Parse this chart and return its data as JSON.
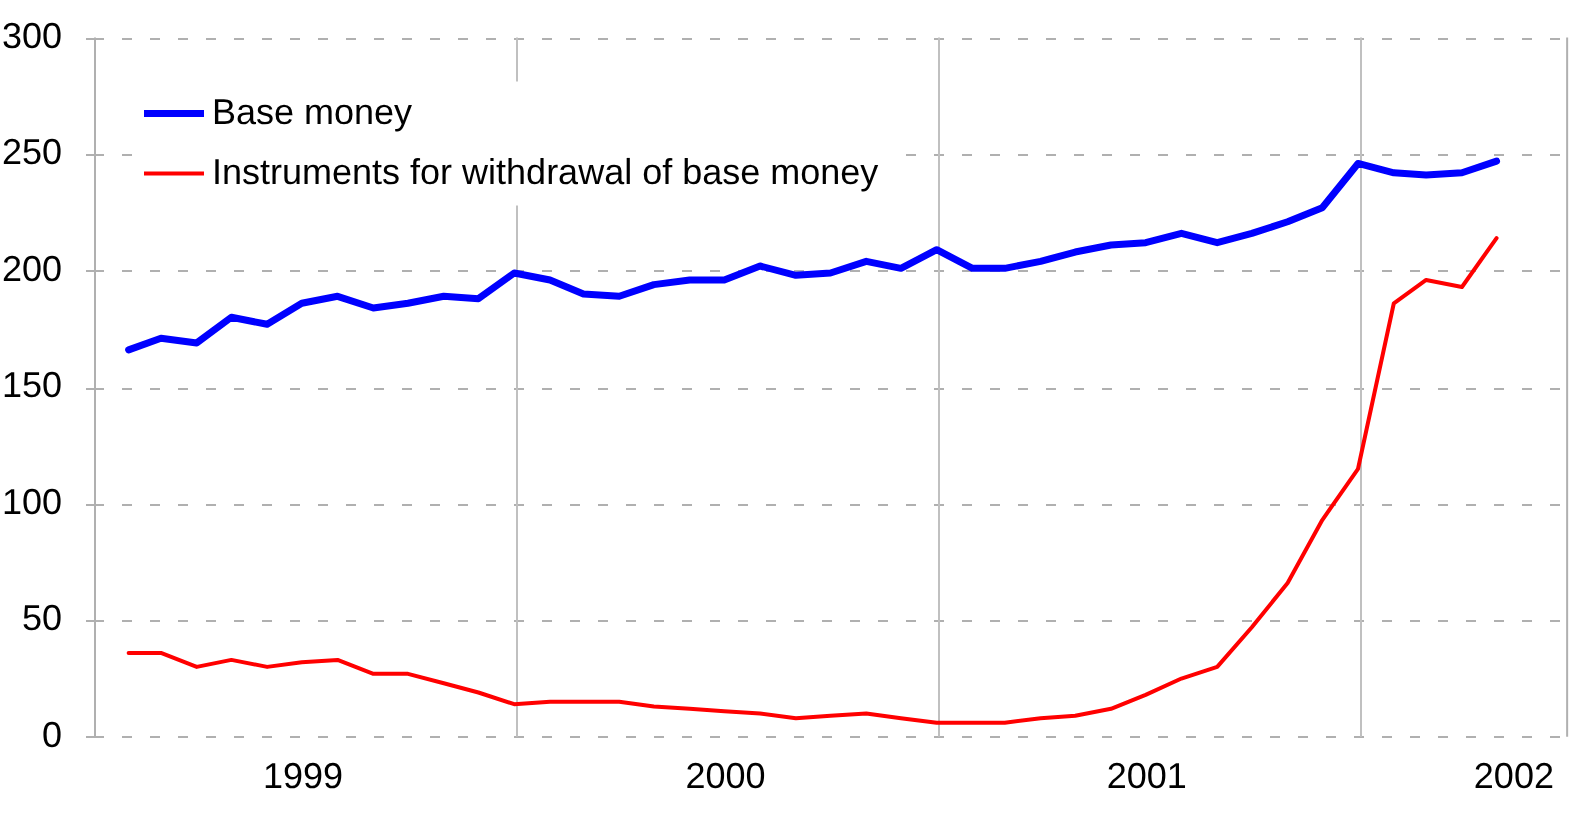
{
  "chart_data": {
    "type": "line",
    "x": [
      "1999-01-31",
      "1999-02-28",
      "1999-03-31",
      "1999-04-30",
      "1999-05-31",
      "1999-06-30",
      "1999-07-31",
      "1999-08-31",
      "1999-09-30",
      "1999-10-31",
      "1999-11-30",
      "1999-12-31",
      "2000-01-31",
      "2000-02-29",
      "2000-03-31",
      "2000-04-30",
      "2000-05-31",
      "2000-06-30",
      "2000-07-31",
      "2000-08-31",
      "2000-09-30",
      "2000-10-31",
      "2000-11-30",
      "2000-12-31",
      "2001-01-31",
      "2001-02-28",
      "2001-03-31",
      "2001-04-30",
      "2001-05-31",
      "2001-06-30",
      "2001-07-31",
      "2001-08-31",
      "2001-09-30",
      "2001-10-31",
      "2001-11-30",
      "2001-12-31",
      "2002-01-31",
      "2002-02-28",
      "2002-03-31",
      "2002-04-30"
    ],
    "series": [
      {
        "name": "Base money",
        "color": "#0000ff",
        "values": [
          166,
          171,
          169,
          180,
          177,
          186,
          189,
          184,
          186,
          189,
          188,
          199,
          196,
          190,
          189,
          194,
          196,
          196,
          202,
          198,
          199,
          204,
          201,
          209,
          201,
          201,
          204,
          208,
          211,
          212,
          216,
          212,
          216,
          221,
          227,
          246,
          242,
          241,
          242,
          247
        ]
      },
      {
        "name": "Instruments for withdrawal of base money",
        "color": "#ff0000",
        "values": [
          36,
          36,
          30,
          33,
          30,
          32,
          33,
          27,
          27,
          23,
          19,
          14,
          15,
          15,
          15,
          13,
          12,
          11,
          10,
          8,
          9,
          10,
          8,
          6,
          6,
          6,
          8,
          9,
          12,
          18,
          25,
          30,
          47,
          66,
          93,
          115,
          186,
          196,
          193,
          214
        ]
      }
    ],
    "xlim": [
      "1999-01-01",
      "2002-07-01"
    ],
    "xticks": [
      {
        "value": "1999-07-01",
        "label": "1999"
      },
      {
        "value": "2000-07-01",
        "label": "2000"
      },
      {
        "value": "2001-07-01",
        "label": "2001"
      },
      {
        "value": "2002-05-15",
        "label": "2002"
      }
    ],
    "ylim": [
      0,
      300
    ],
    "yticks": [
      0,
      50,
      100,
      150,
      200,
      250,
      300
    ],
    "ref_lines": [
      {
        "axis": "x",
        "value": "2000-01-01",
        "label": null,
        "color": "#c0c0c0"
      },
      {
        "axis": "x",
        "value": "2001-01-01",
        "label": null,
        "color": "#c0c0c0"
      },
      {
        "axis": "x",
        "value": "2002-01-01",
        "label": null,
        "color": "#c0c0c0"
      }
    ],
    "grid": "y",
    "legend": "top left",
    "marker": "none",
    "line_style": "solid"
  }
}
